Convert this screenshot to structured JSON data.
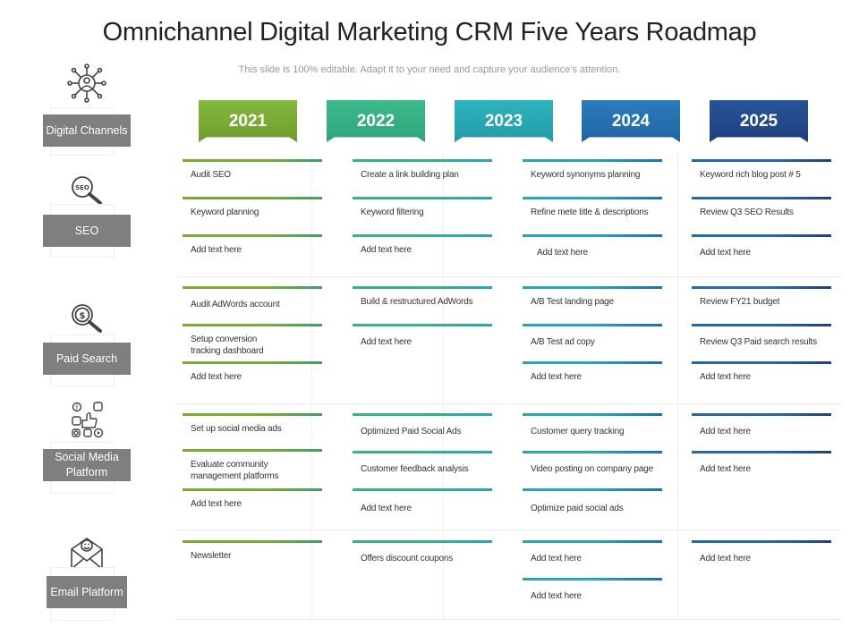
{
  "title": "Omnichannel Digital Marketing CRM Five Years Roadmap",
  "subtitle": "This slide is 100% editable. Adapt it to your need and capture your audience’s attention.",
  "years": [
    "2021",
    "2022",
    "2023",
    "2024",
    "2025"
  ],
  "colors": {
    "y2021": "#7aac34",
    "y2022": "#36b284",
    "y2023": "#25a7b4",
    "y2024": "#1f6fae",
    "y2025": "#213f7c",
    "label_bg": "#7f7f7f"
  },
  "categories": [
    {
      "label": "Digital Channels",
      "icon": "network-user-icon"
    },
    {
      "label": "SEO",
      "icon": "seo-magnifier-icon"
    },
    {
      "label": "Paid Search",
      "icon": "dollar-magnifier-icon"
    },
    {
      "label": "Social Media Platform",
      "icon": "social-media-icons"
    },
    {
      "label": "Email Platform",
      "icon": "envelope-smiley-icon"
    }
  ],
  "seo": {
    "c2021": [
      "Audit SEO",
      "Keyword planning",
      "Add text here"
    ],
    "c2022": [
      "Create a link building plan",
      "Keyword filtering",
      "Add text here"
    ],
    "c2024": [
      "Keyword synonyms planning",
      "Refine mete title & descriptions",
      "Add text here"
    ],
    "c2025": [
      "Keyword rich blog post # 5",
      "Review Q3 SEO Results",
      "Add text here"
    ]
  },
  "paid": {
    "c2021": [
      "Audit AdWords account",
      "Setup conversion tracking dashboard",
      "Add text here"
    ],
    "c2022": [
      "Build & restructured AdWords",
      "Add text here"
    ],
    "c2024": [
      "A/B Test landing page",
      "A/B Test ad copy",
      "Add text here"
    ],
    "c2025": [
      "Review FY21 budget",
      "Review Q3 Paid search results",
      "Add text here"
    ]
  },
  "social": {
    "c2021": [
      "Set up social media ads",
      "Evaluate community management platforms",
      "Add text here"
    ],
    "c2022": [
      "Optimized Paid Social Ads",
      "Customer feedback analysis",
      "Add text here"
    ],
    "c2024": [
      "Customer query tracking",
      "Video posting on company page",
      "Optimize paid social ads"
    ],
    "c2025": [
      "Add text here",
      "Add text here"
    ]
  },
  "email": {
    "c2021": [
      "Newsletter"
    ],
    "c2022": [
      "Offers discount coupons"
    ],
    "c2024": [
      "Add text here",
      "Add text here"
    ],
    "c2025": [
      "Add text here"
    ]
  }
}
